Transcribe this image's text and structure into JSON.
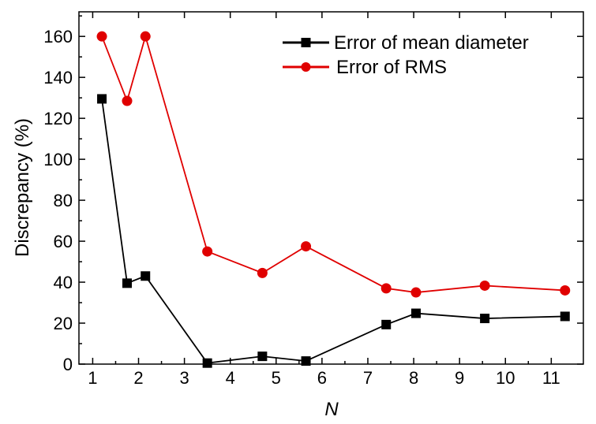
{
  "chart_data": {
    "type": "line",
    "xlabel": "N",
    "ylabel": "Discrepancy (%)",
    "xlim": [
      0.7,
      11.7
    ],
    "ylim": [
      0,
      172
    ],
    "x_ticks": [
      1,
      2,
      3,
      4,
      5,
      6,
      7,
      8,
      9,
      10,
      11
    ],
    "y_ticks": [
      0,
      20,
      40,
      60,
      80,
      100,
      120,
      140,
      160
    ],
    "grid": false,
    "legend_position": "top-right",
    "series": [
      {
        "name": "Error of mean diameter",
        "color": "#000000",
        "marker": "square",
        "x": [
          1.2,
          1.75,
          2.15,
          3.5,
          4.7,
          5.65,
          7.4,
          8.05,
          9.55,
          11.3
        ],
        "y": [
          129.5,
          39.5,
          43,
          0.5,
          3.8,
          1.5,
          19.3,
          24.8,
          22.3,
          23.3
        ]
      },
      {
        "name": "Error of RMS",
        "color": "#e00000",
        "marker": "circle",
        "x": [
          1.2,
          1.75,
          2.15,
          3.5,
          4.7,
          5.65,
          7.4,
          8.05,
          9.55,
          11.3
        ],
        "y": [
          160,
          128.5,
          160,
          55,
          44.5,
          57.5,
          37,
          35,
          38.3,
          36
        ]
      }
    ]
  }
}
